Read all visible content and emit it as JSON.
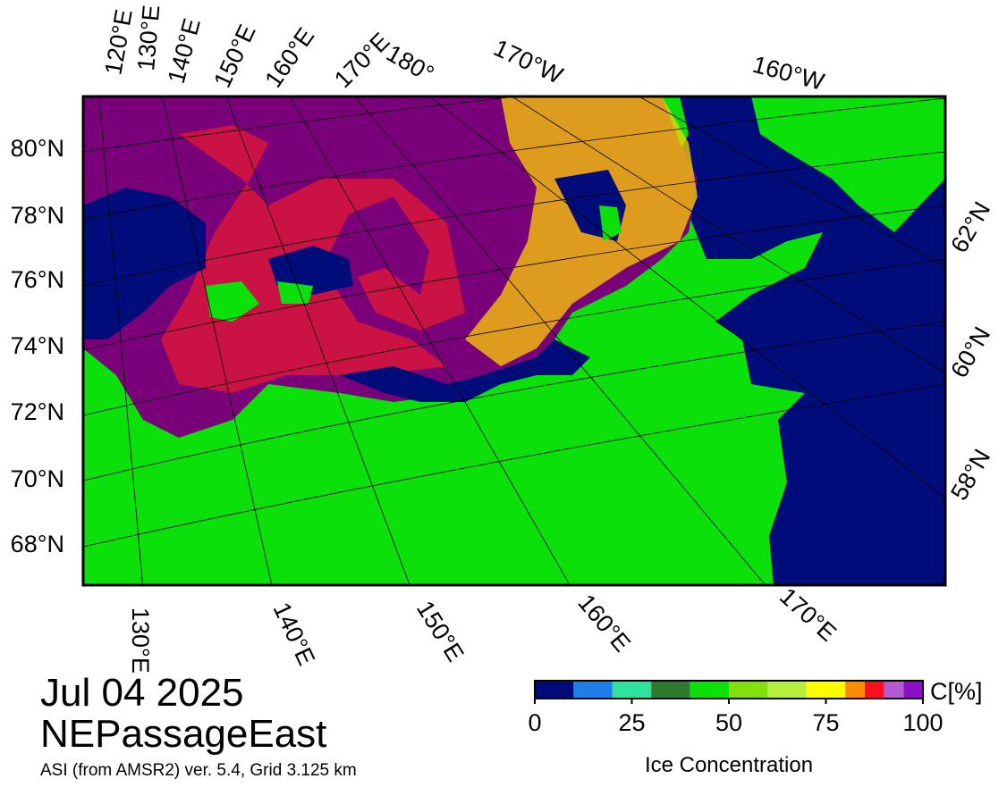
{
  "map": {
    "top_labels": [
      "120°E",
      "130°E",
      "140°E",
      "150°E",
      "160°E",
      "170°E",
      "180°",
      "170°W",
      "160°W"
    ],
    "left_labels": [
      "80°N",
      "78°N",
      "76°N",
      "74°N",
      "72°N",
      "70°N",
      "68°N"
    ],
    "right_labels": [
      "62°N",
      "60°N",
      "58°N"
    ],
    "bottom_labels": [
      "130°E",
      "140°E",
      "150°E",
      "160°E",
      "170°E"
    ]
  },
  "date": "Jul 04 2025",
  "region": "NEPassageEast",
  "source": "ASI (from AMSR2) ver. 5.4,  Grid 3.125 km",
  "colorbar": {
    "title": "Ice Concentration",
    "unit": "C[%]",
    "range": [
      0,
      100
    ],
    "ticks": [
      0,
      25,
      50,
      75,
      100
    ],
    "bounds": [
      0,
      10,
      20,
      30,
      40,
      50,
      60,
      70,
      80,
      85,
      90,
      95,
      100
    ],
    "colors": [
      "#000c7a",
      "#1e7fe8",
      "#2ee3a0",
      "#2e7a2e",
      "#0be00b",
      "#7fe00b",
      "#b8ee40",
      "#ffff00",
      "#ff8c00",
      "#ff0f1e",
      "#b45ad2",
      "#8c10c8"
    ]
  }
}
